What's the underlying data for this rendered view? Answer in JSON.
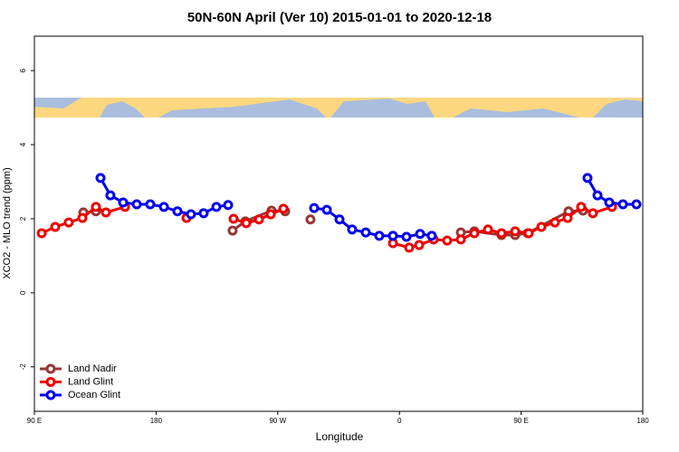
{
  "chart_data": {
    "type": "line",
    "title": "50N-60N April (Ver 10)   2015-01-01 to 2020-12-18",
    "xlabel": "Longitude",
    "ylabel": "XCO2 - MLO trend (ppm)",
    "xlim": [
      90,
      540
    ],
    "ylim": [
      -3.2,
      6.93
    ],
    "xticks": [
      {
        "value": 90,
        "label": "90 E"
      },
      180,
      {
        "value": 270,
        "label": "90 W"
      },
      {
        "value": 360,
        "label": "0"
      },
      {
        "value": 450,
        "label": "90 E"
      },
      {
        "value": 540,
        "label": "180"
      }
    ],
    "yticks": [
      -2,
      0,
      2,
      4,
      6
    ],
    "legend": "bottom-left",
    "series": [
      {
        "name": "Land Nadir",
        "color": "#953735",
        "x": [
          126.2,
          135.5,
          null,
          236.6,
          246.0,
          265.4,
          275.5,
          null,
          294.2,
          null,
          405.4,
          415.4,
          435.5,
          445.6,
          454.9,
          485.1,
          495.8
        ],
        "values": [
          2.17,
          2.2,
          null,
          1.68,
          1.93,
          2.22,
          2.2,
          null,
          1.98,
          null,
          1.63,
          1.66,
          1.56,
          1.56,
          1.61,
          2.2,
          2.22
        ]
      },
      {
        "name": "Land Glint",
        "color": "#ee0000",
        "x": [
          95.4,
          105.4,
          115.4,
          125.5,
          135.5,
          142.9,
          157.0,
          null,
          202.5,
          null,
          237.3,
          246.7,
          256.1,
          264.8,
          274.2,
          null,
          355.2,
          367.2,
          374.6,
          385.3,
          395.3,
          405.4,
          415.4,
          425.5,
          435.5,
          445.6,
          455.6,
          465.0,
          475.0,
          484.4,
          494.4,
          503.1,
          517.2
        ],
        "values": [
          1.61,
          1.78,
          1.9,
          2.02,
          2.32,
          2.17,
          2.32,
          null,
          2.02,
          null,
          2.0,
          1.88,
          1.98,
          2.12,
          2.27,
          null,
          1.34,
          1.22,
          1.29,
          1.44,
          1.41,
          1.44,
          1.61,
          1.71,
          1.61,
          1.66,
          1.61,
          1.78,
          1.9,
          2.02,
          2.32,
          2.15,
          2.32
        ]
      },
      {
        "name": "Ocean Glint",
        "color": "#0000ee",
        "x": [
          138.9,
          146.2,
          155.6,
          165.7,
          175.7,
          185.8,
          195.8,
          205.8,
          215.2,
          224.6,
          233.3,
          null,
          296.9,
          306.3,
          315.7,
          325.0,
          335.1,
          345.1,
          355.2,
          365.2,
          375.3,
          383.9,
          null,
          499.1,
          506.5,
          515.2,
          525.3,
          535.3
        ],
        "values": [
          3.1,
          2.63,
          2.44,
          2.39,
          2.39,
          2.32,
          2.2,
          2.12,
          2.15,
          2.32,
          2.37,
          null,
          2.29,
          2.24,
          1.98,
          1.71,
          1.63,
          1.54,
          1.54,
          1.51,
          1.59,
          1.54,
          null,
          3.1,
          2.63,
          2.44,
          2.39,
          2.39
        ]
      }
    ]
  }
}
